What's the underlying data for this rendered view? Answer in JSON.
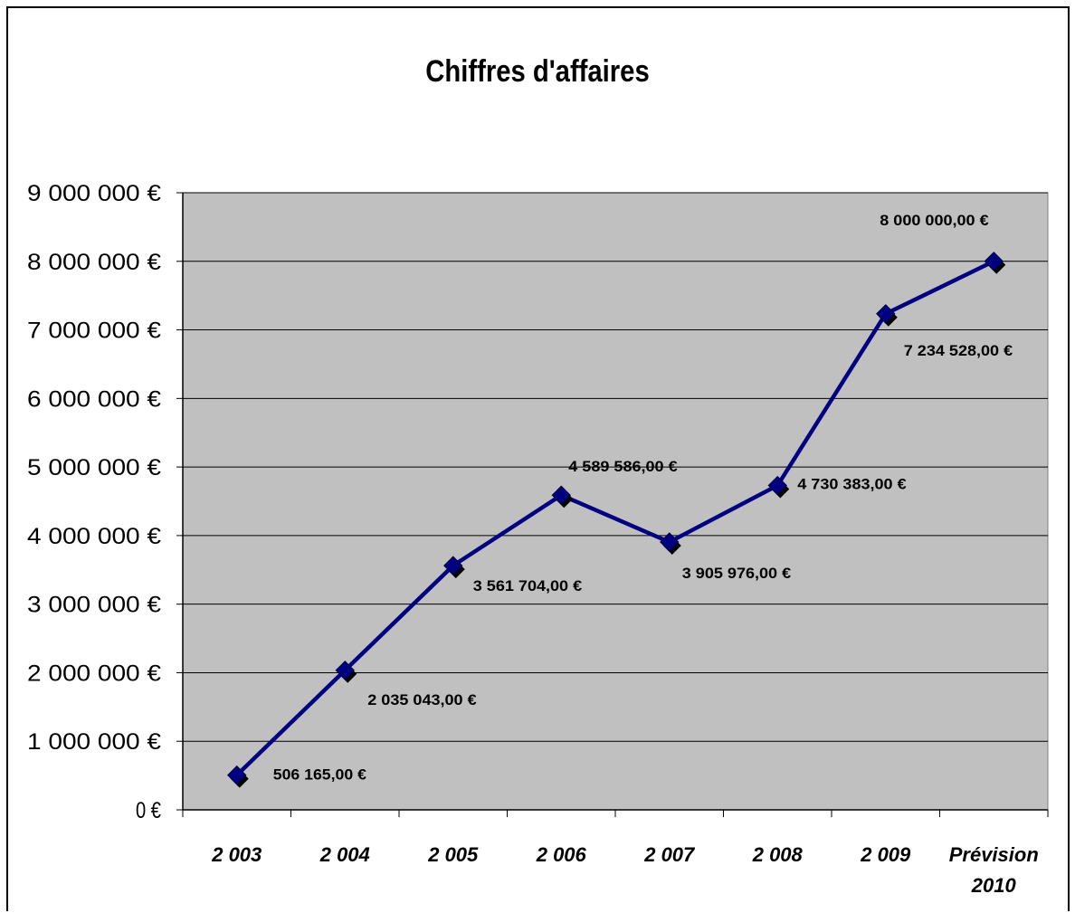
{
  "chart_data": {
    "type": "line",
    "title": "Chiffres d'affaires",
    "xlabel": "",
    "ylabel": "",
    "categories": [
      [
        "2 003"
      ],
      [
        "2 004"
      ],
      [
        "2 005"
      ],
      [
        "2 006"
      ],
      [
        "2 007"
      ],
      [
        "2 008"
      ],
      [
        "2 009"
      ],
      [
        "Prévision",
        "2010"
      ]
    ],
    "series": [
      {
        "values": [
          506165,
          2035043,
          3561704,
          4589586,
          3905976,
          4730383,
          7234528,
          8000000
        ]
      }
    ],
    "data_labels": [
      "506 165,00 €",
      "2 035 043,00 €",
      "3 561 704,00 €",
      "4 589 586,00 €",
      "3 905 976,00 €",
      "4 730 383,00 €",
      "7 234 528,00 €",
      "8 000 000,00 €"
    ],
    "ylim": [
      0,
      9000000
    ],
    "yticks": [
      0,
      1000000,
      2000000,
      3000000,
      4000000,
      5000000,
      6000000,
      7000000,
      8000000,
      9000000
    ],
    "ytick_labels": [
      "0 €",
      "1 000 000 €",
      "2 000 000 €",
      "3 000 000 €",
      "4 000 000 €",
      "5 000 000 €",
      "6 000 000 €",
      "7 000 000 €",
      "8 000 000 €",
      "9 000 000 €"
    ],
    "grid": true,
    "legend": "none",
    "colors": {
      "plot_background": "#c0c0c0",
      "line": "#000080",
      "marker": "#000080",
      "gridlines": "#000000"
    }
  }
}
